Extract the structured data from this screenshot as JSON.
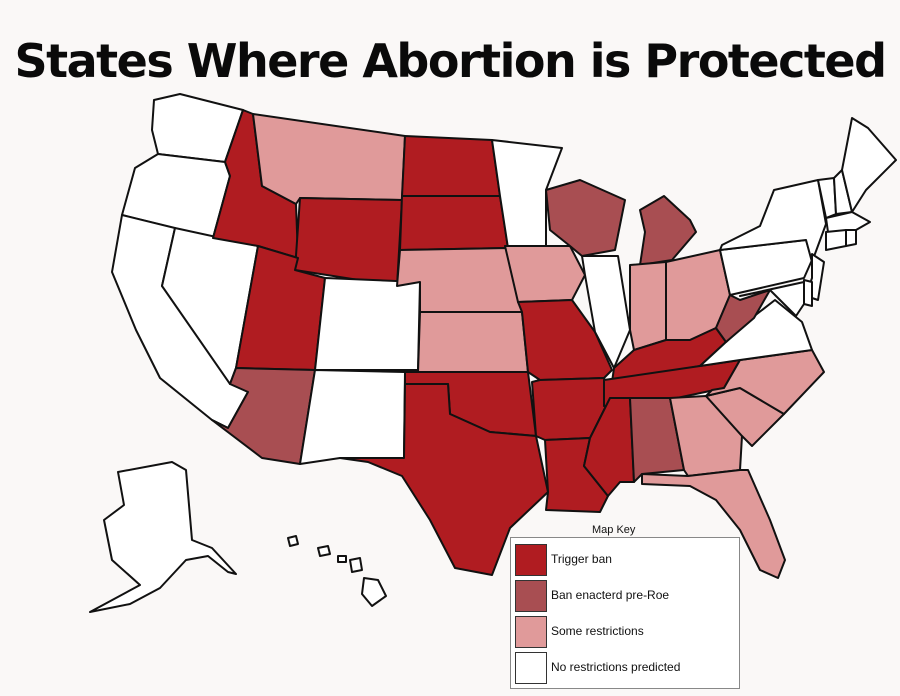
{
  "title": "States Where Abortion is Protected",
  "colors": {
    "trigger_ban": "#b01c21",
    "ban_pre_roe": "#a84e52",
    "some_restrictions": "#e09a9a",
    "no_restrictions": "#ffffff",
    "outline": "#111111"
  },
  "map_key": {
    "title": "Map Key",
    "items": [
      {
        "label": "Trigger ban",
        "category": "trigger_ban"
      },
      {
        "label": "Ban enacterd pre-Roe",
        "category": "ban_pre_roe"
      },
      {
        "label": "Some restrictions",
        "category": "some_restrictions"
      },
      {
        "label": "No restrictions predicted",
        "category": "no_restrictions"
      }
    ]
  },
  "states": {
    "WA": "no_restrictions",
    "OR": "no_restrictions",
    "CA": "no_restrictions",
    "NV": "no_restrictions",
    "ID": "trigger_ban",
    "MT": "some_restrictions",
    "WY": "trigger_ban",
    "UT": "trigger_ban",
    "AZ": "ban_pre_roe",
    "CO": "no_restrictions",
    "NM": "no_restrictions",
    "ND": "trigger_ban",
    "SD": "trigger_ban",
    "NE": "some_restrictions",
    "KS": "some_restrictions",
    "OK": "trigger_ban",
    "TX": "trigger_ban",
    "MN": "no_restrictions",
    "IA": "some_restrictions",
    "MO": "trigger_ban",
    "AR": "trigger_ban",
    "LA": "trigger_ban",
    "WI": "ban_pre_roe",
    "IL": "no_restrictions",
    "MI": "ban_pre_roe",
    "IN": "some_restrictions",
    "OH": "some_restrictions",
    "KY": "trigger_ban",
    "TN": "trigger_ban",
    "MS": "trigger_ban",
    "AL": "ban_pre_roe",
    "GA": "some_restrictions",
    "FL": "some_restrictions",
    "SC": "some_restrictions",
    "NC": "some_restrictions",
    "VA": "no_restrictions",
    "WV": "ban_pre_roe",
    "PA": "no_restrictions",
    "NY": "no_restrictions",
    "VT": "no_restrictions",
    "NH": "no_restrictions",
    "ME": "no_restrictions",
    "MA": "no_restrictions",
    "RI": "no_restrictions",
    "CT": "no_restrictions",
    "NJ": "no_restrictions",
    "DE": "no_restrictions",
    "MD": "no_restrictions",
    "AK": "no_restrictions",
    "HI": "no_restrictions"
  }
}
